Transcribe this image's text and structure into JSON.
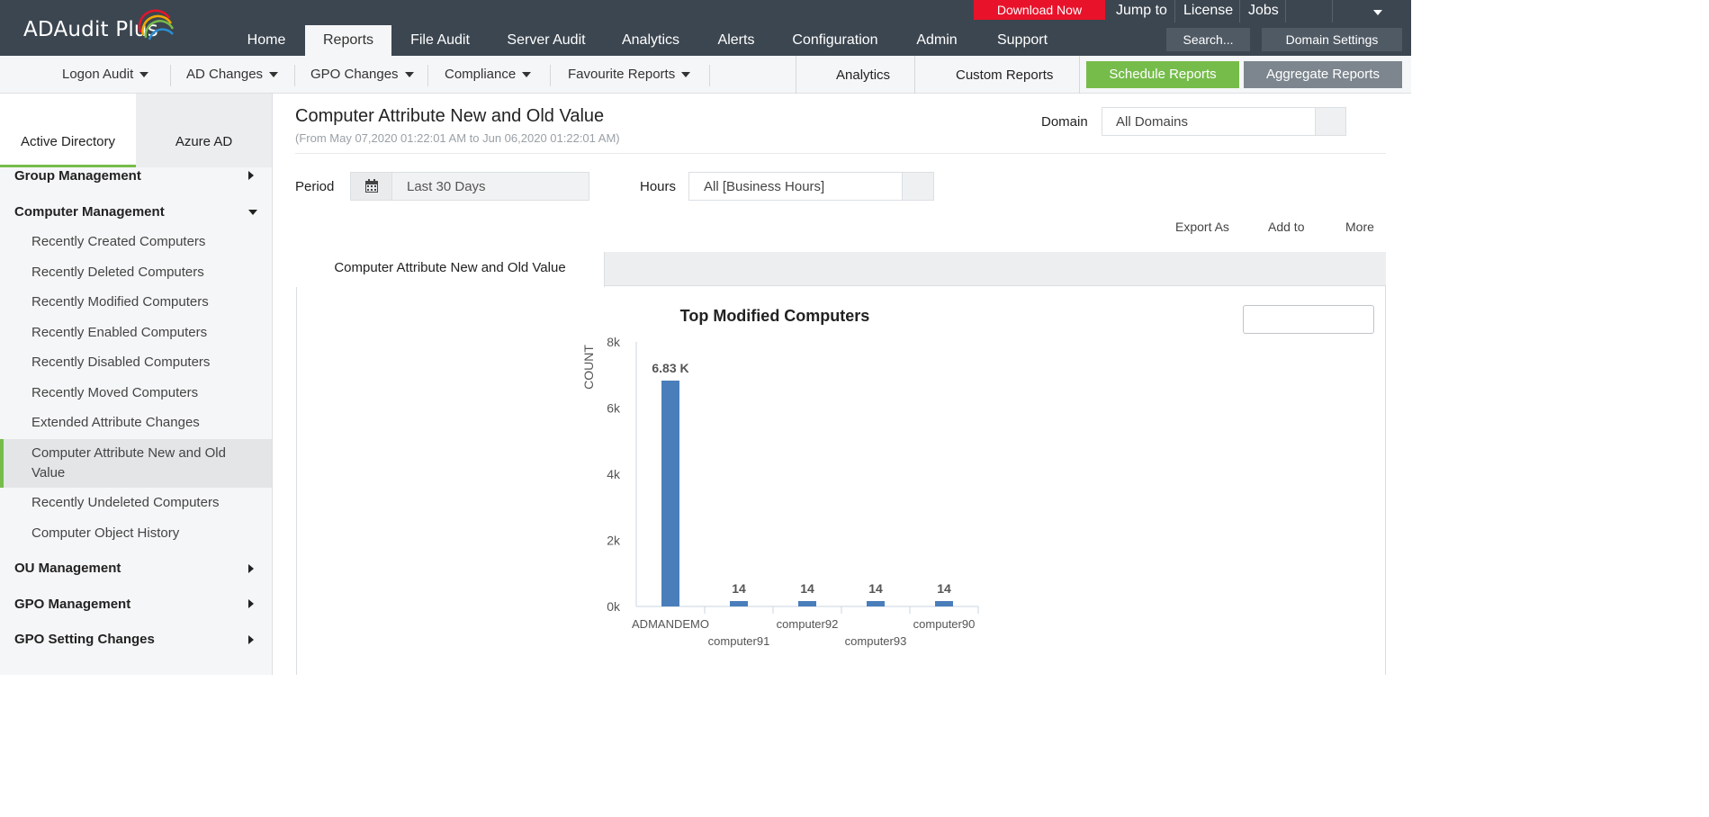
{
  "app": {
    "logo_text": "ADAudit Plus"
  },
  "header": {
    "download_label": "Download Now",
    "links": [
      "Jump to",
      "License",
      "Jobs"
    ],
    "nav": [
      "Home",
      "Reports",
      "File Audit",
      "Server Audit",
      "Analytics",
      "Alerts",
      "Configuration",
      "Admin",
      "Support"
    ],
    "active_nav": "Reports",
    "search_label": "Search...",
    "domain_settings_label": "Domain Settings"
  },
  "subnav": {
    "menus": [
      "Logon Audit",
      "AD Changes",
      "GPO Changes",
      "Compliance",
      "Favourite Reports"
    ],
    "analytics_label": "Analytics",
    "custom_reports_label": "Custom Reports",
    "schedule_label": "Schedule Reports",
    "aggregate_label": "Aggregate Reports"
  },
  "sidebar": {
    "tabs": [
      "Active Directory",
      "Azure AD"
    ],
    "groups": {
      "group_management": "Group Management",
      "computer_management": "Computer Management",
      "ou_management": "OU Management",
      "gpo_management": "GPO Management",
      "gpo_setting_changes": "GPO Setting Changes"
    },
    "items": [
      "Recently Created Computers",
      "Recently Deleted Computers",
      "Recently Modified Computers",
      "Recently Enabled Computers",
      "Recently Disabled Computers",
      "Recently Moved Computers",
      "Extended Attribute Changes",
      "Computer Attribute New and Old Value",
      "Recently Undeleted Computers",
      "Computer Object History"
    ],
    "active_item": "Computer Attribute New and Old Value"
  },
  "report": {
    "title": "Computer Attribute New and Old Value",
    "range": "(From May 07,2020 01:22:01 AM to Jun 06,2020 01:22:01 AM)",
    "domain_label": "Domain",
    "domain_value": "All Domains",
    "period_label": "Period",
    "period_value": "Last 30 Days",
    "hours_label": "Hours",
    "hours_value": "All [Business Hours]",
    "actions": [
      "Export As",
      "Add to",
      "More"
    ],
    "tab_label": "Computer Attribute New and Old Value"
  },
  "chart_data": {
    "type": "bar",
    "title": "Top Modified Computers",
    "xlabel": "",
    "ylabel": "COUNT",
    "categories": [
      "ADMANDEMO",
      "computer91",
      "computer92",
      "computer93",
      "computer90"
    ],
    "values": [
      6830,
      14,
      14,
      14,
      14
    ],
    "data_labels": [
      "6.83 K",
      "14",
      "14",
      "14",
      "14"
    ],
    "yticks": [
      "0k",
      "2k",
      "4k",
      "6k",
      "8k"
    ],
    "ylim": [
      0,
      8000
    ],
    "bar_color": "#4a7ebb",
    "grid": false
  }
}
